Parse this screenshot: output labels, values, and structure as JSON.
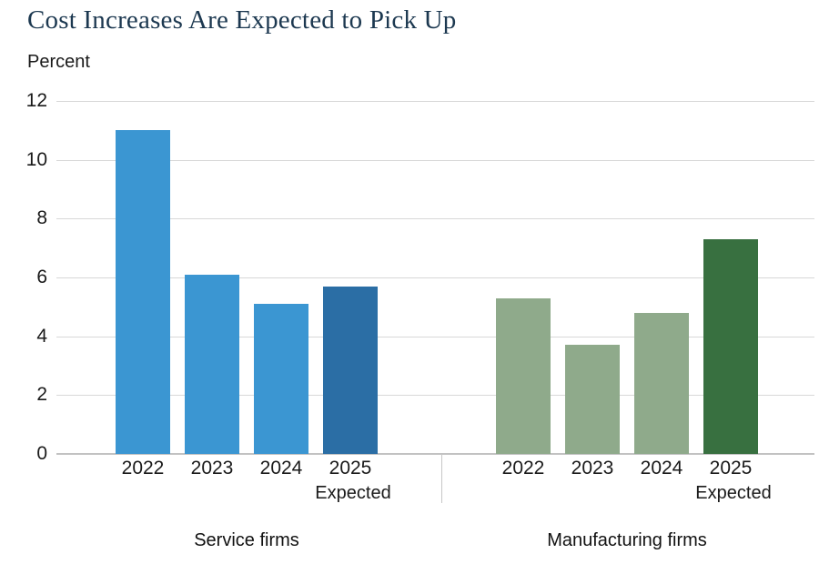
{
  "chart_data": {
    "type": "bar",
    "title": "Cost Increases Are Expected to Pick Up",
    "ylabel": "Percent",
    "xlabel": "",
    "ylim": [
      0,
      12
    ],
    "yticks": [
      0,
      2,
      4,
      6,
      8,
      10,
      12
    ],
    "grid": true,
    "legend_position": "none",
    "categories": [
      "2022",
      "2023",
      "2024",
      "2025"
    ],
    "expected_note": "Expected",
    "expected_category_index": 3,
    "groups": [
      {
        "name": "Service firms",
        "values": [
          11.0,
          6.1,
          5.1,
          5.7
        ],
        "bar_color": "#3b96d2",
        "highlight_color": "#2b6ea5",
        "highlight_index": 3
      },
      {
        "name": "Manufacturing firms",
        "values": [
          5.3,
          3.7,
          4.8,
          7.3
        ],
        "bar_color": "#8faa8b",
        "highlight_color": "#387040",
        "highlight_index": 3
      }
    ],
    "colors": {
      "title_text": "#1c3850",
      "axis_text": "#1a1a1a",
      "gridline": "#d8d8d8",
      "baseline": "#c2c2c2"
    }
  }
}
